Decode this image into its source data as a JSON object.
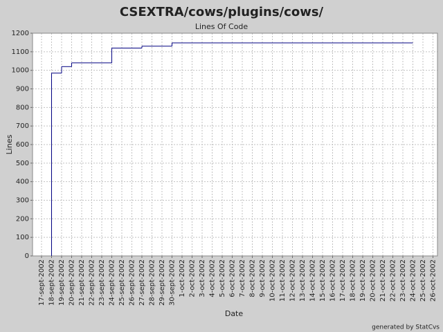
{
  "title": "CSEXTRA/cows/plugins/cows/",
  "chart_data": {
    "type": "step",
    "title": "Lines Of Code",
    "x_label": "Date",
    "y_label": "Lines",
    "categories": [
      "17-sept-2002",
      "18-sept-2002",
      "19-sept-2002",
      "20-sept-2002",
      "21-sept-2002",
      "22-sept-2002",
      "23-sept-2002",
      "24-sept-2002",
      "25-sept-2002",
      "26-sept-2002",
      "27-sept-2002",
      "28-sept-2002",
      "29-sept-2002",
      "30-sept-2002",
      "1-oct-2002",
      "2-oct-2002",
      "3-oct-2002",
      "4-oct-2002",
      "5-oct-2002",
      "6-oct-2002",
      "7-oct-2002",
      "8-oct-2002",
      "9-oct-2002",
      "10-oct-2002",
      "11-oct-2002",
      "12-oct-2002",
      "13-oct-2002",
      "14-oct-2002",
      "15-oct-2002",
      "16-oct-2002",
      "17-oct-2002",
      "18-oct-2002",
      "19-oct-2002",
      "20-oct-2002",
      "21-oct-2002",
      "22-oct-2002",
      "23-oct-2002",
      "24-oct-2002",
      "25-oct-2002",
      "26-oct-2002"
    ],
    "series": [
      {
        "name": "Lines",
        "color": "#000080",
        "x": [
          "18-sept-2002",
          "18-sept-2002",
          "18-sept-2002",
          "19-sept-2002",
          "20-sept-2002",
          "24-sept-2002",
          "27-sept-2002",
          "30-sept-2002",
          "24-oct-2002"
        ],
        "values": [
          0,
          955,
          985,
          1020,
          1040,
          1120,
          1130,
          1148,
          1148
        ]
      }
    ],
    "ylim": [
      0,
      1200
    ],
    "yticks": [
      0,
      100,
      200,
      300,
      400,
      500,
      600,
      700,
      800,
      900,
      1000,
      1100,
      1200
    ],
    "grid": true
  },
  "footer": "generated by StatCvs"
}
